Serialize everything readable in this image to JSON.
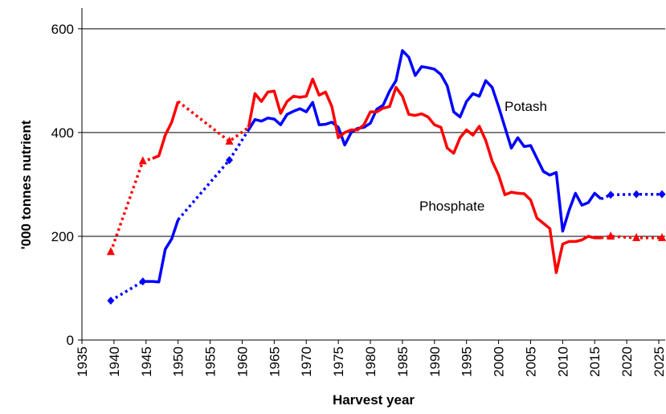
{
  "chart_data": {
    "type": "line",
    "y_label": "'000 tonnes nutrient",
    "x_label": "Harvest year",
    "annotations": [
      "Potash",
      "Phosphate"
    ],
    "xlim": [
      1935,
      2026
    ],
    "xticks": [
      1935,
      1940,
      1945,
      1950,
      1955,
      1960,
      1965,
      1970,
      1975,
      1980,
      1985,
      1990,
      1995,
      2000,
      2005,
      2010,
      2015,
      2020,
      2025
    ],
    "ylim": [
      0,
      640
    ],
    "yticks": [
      0,
      200,
      400,
      600
    ],
    "grid": true,
    "series": [
      {
        "name": "Potash",
        "color": "#0000ff",
        "style": "solid",
        "x": [
          1945,
          1946,
          1947,
          1948,
          1949,
          1950,
          1951,
          1952,
          1953,
          1954,
          1955,
          1956,
          1957,
          1958,
          1959,
          1960,
          1961,
          1962,
          1963,
          1964,
          1965,
          1966,
          1967,
          1968,
          1969,
          1970,
          1971,
          1972,
          1973,
          1974,
          1975,
          1976,
          1977,
          1978,
          1979,
          1980,
          1981,
          1982,
          1983,
          1984,
          1985,
          1986,
          1987,
          1988,
          1989,
          1990,
          1991,
          1992,
          1993,
          1994,
          1995,
          1996,
          1997,
          1998,
          1999,
          2000,
          2001,
          2002,
          2003,
          2004,
          2005,
          2006,
          2007,
          2008,
          2009,
          2010,
          2011,
          2012,
          2013,
          2014,
          2015,
          2016
        ],
        "values": [
          113,
          113,
          112,
          175,
          195,
          232,
          null,
          null,
          null,
          null,
          null,
          null,
          null,
          null,
          null,
          null,
          405,
          425,
          422,
          428,
          426,
          415,
          435,
          441,
          446,
          440,
          458,
          415,
          416,
          420,
          410,
          376,
          400,
          408,
          410,
          418,
          445,
          453,
          480,
          500,
          558,
          545,
          510,
          527,
          525,
          522,
          512,
          490,
          440,
          430,
          460,
          475,
          470,
          500,
          487,
          450,
          410,
          370,
          390,
          373,
          375,
          350,
          325,
          318,
          323,
          210,
          250,
          283,
          260,
          265,
          283,
          272
        ]
      },
      {
        "name": "Phosphate",
        "color": "#ff0000",
        "style": "solid",
        "x": [
          1946,
          1947,
          1948,
          1949,
          1950,
          1951,
          1952,
          1953,
          1954,
          1955,
          1956,
          1957,
          1958,
          1959,
          1960,
          1961,
          1962,
          1963,
          1964,
          1965,
          1966,
          1967,
          1968,
          1969,
          1970,
          1971,
          1972,
          1973,
          1974,
          1975,
          1976,
          1977,
          1978,
          1979,
          1980,
          1981,
          1982,
          1983,
          1984,
          1985,
          1986,
          1987,
          1988,
          1989,
          1990,
          1991,
          1992,
          1993,
          1994,
          1995,
          1996,
          1997,
          1998,
          1999,
          2000,
          2001,
          2002,
          2003,
          2004,
          2005,
          2006,
          2007,
          2008,
          2009,
          2010,
          2011,
          2012,
          2013,
          2014,
          2015,
          2016
        ],
        "values": [
          350,
          355,
          395,
          420,
          460,
          null,
          null,
          null,
          null,
          null,
          null,
          null,
          null,
          null,
          null,
          410,
          475,
          460,
          478,
          480,
          437,
          460,
          470,
          468,
          470,
          503,
          472,
          478,
          450,
          390,
          400,
          405,
          405,
          415,
          440,
          440,
          447,
          450,
          487,
          470,
          435,
          433,
          436,
          430,
          415,
          410,
          370,
          360,
          390,
          405,
          395,
          412,
          385,
          345,
          318,
          280,
          285,
          283,
          282,
          270,
          235,
          225,
          215,
          130,
          185,
          190,
          190,
          193,
          200,
          197,
          197
        ]
      },
      {
        "color": "#0000ff",
        "style": "dotted",
        "x": [
          1939.5,
          1944.5,
          1945,
          1946,
          1950,
          1958,
          1961,
          2014,
          2016,
          2017.5,
          2021.5,
          2025.5
        ],
        "values": [
          76,
          113,
          113,
          null,
          232,
          347,
          405,
          null,
          272,
          280,
          281,
          281
        ]
      },
      {
        "color": "#ff0000",
        "style": "dotted",
        "x": [
          1939.5,
          1944.5,
          1946,
          1947,
          1950,
          1958,
          1961,
          2014,
          2016,
          2017.5,
          2021.5,
          2025.5
        ],
        "values": [
          170,
          345,
          350,
          null,
          460,
          383,
          410,
          null,
          197,
          200,
          197,
          197
        ]
      },
      {
        "color": "#0000ff",
        "style": "none",
        "marker": "diamond",
        "x": [
          1939.5,
          1944.5,
          1958,
          2017.5,
          2021.5,
          2025.5
        ],
        "values": [
          76,
          113,
          347,
          280,
          281,
          281
        ]
      },
      {
        "color": "#ff0000",
        "style": "none",
        "marker": "triangle",
        "x": [
          1939.5,
          1944.5,
          1958,
          2017.5,
          2021.5,
          2025.5
        ],
        "values": [
          170,
          345,
          383,
          200,
          197,
          197
        ]
      }
    ]
  }
}
